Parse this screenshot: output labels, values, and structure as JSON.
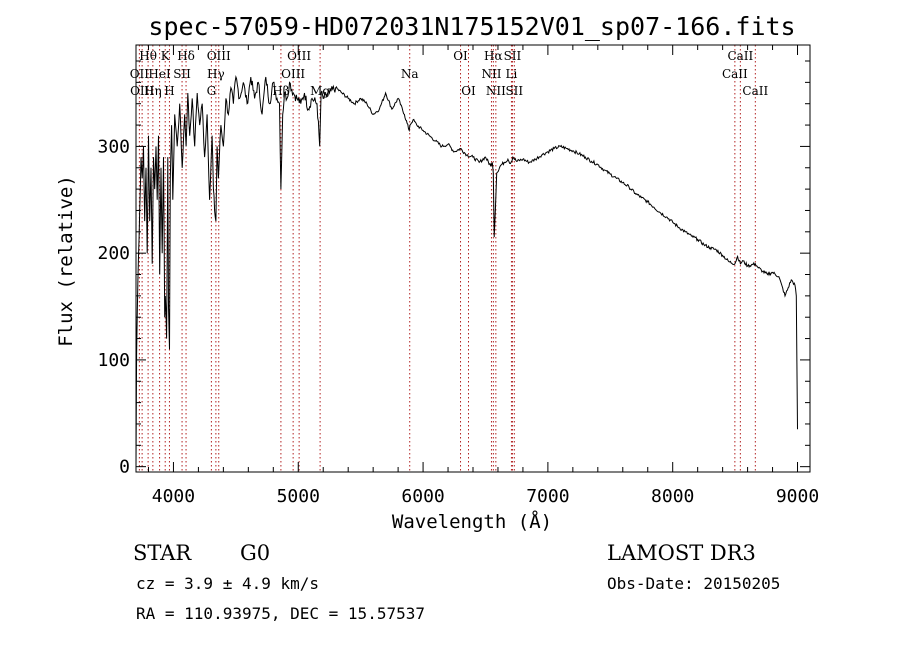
{
  "chart_data": {
    "type": "line",
    "title": "spec-57059-HD072031N175152V01_sp07-166.fits",
    "xlabel": "Wavelength (Å)",
    "ylabel": "Flux (relative)",
    "xlim": [
      3700,
      9100
    ],
    "ylim": [
      -5,
      395
    ],
    "xticks": [
      4000,
      5000,
      6000,
      7000,
      8000,
      9000
    ],
    "yticks": [
      0,
      100,
      200,
      300
    ],
    "series": [
      {
        "name": "flux",
        "x": [
          3700,
          3705,
          3715,
          3730,
          3740,
          3750,
          3760,
          3770,
          3780,
          3790,
          3800,
          3810,
          3820,
          3830,
          3840,
          3850,
          3860,
          3870,
          3880,
          3890,
          3900,
          3910,
          3920,
          3930,
          3935,
          3945,
          3955,
          3960,
          3968,
          3975,
          3985,
          3995,
          4010,
          4030,
          4050,
          4070,
          4090,
          4101,
          4115,
          4130,
          4150,
          4170,
          4190,
          4210,
          4230,
          4250,
          4270,
          4290,
          4310,
          4320,
          4330,
          4340,
          4350,
          4360,
          4380,
          4400,
          4420,
          4440,
          4460,
          4480,
          4500,
          4530,
          4560,
          4590,
          4620,
          4650,
          4680,
          4710,
          4740,
          4770,
          4800,
          4830,
          4850,
          4861,
          4875,
          4890,
          4910,
          4930,
          4960,
          4990,
          5020,
          5050,
          5080,
          5110,
          5150,
          5172,
          5183,
          5200,
          5250,
          5300,
          5350,
          5400,
          5450,
          5500,
          5550,
          5600,
          5650,
          5700,
          5750,
          5800,
          5850,
          5889,
          5895,
          5920,
          5950,
          6000,
          6050,
          6100,
          6150,
          6200,
          6250,
          6300,
          6350,
          6400,
          6450,
          6500,
          6540,
          6555,
          6563,
          6570,
          6590,
          6620,
          6650,
          6680,
          6700,
          6720,
          6750,
          6800,
          6850,
          6900,
          6950,
          7000,
          7050,
          7100,
          7150,
          7200,
          7250,
          7300,
          7350,
          7400,
          7450,
          7500,
          7550,
          7600,
          7650,
          7700,
          7750,
          7800,
          7850,
          7900,
          7950,
          8000,
          8050,
          8100,
          8150,
          8200,
          8250,
          8300,
          8350,
          8400,
          8450,
          8498,
          8520,
          8542,
          8560,
          8600,
          8662,
          8680,
          8720,
          8760,
          8800,
          8850,
          8900,
          8950,
          8980,
          8990,
          9000
        ],
        "y": [
          0,
          105,
          175,
          240,
          290,
          270,
          300,
          230,
          280,
          200,
          310,
          230,
          280,
          190,
          290,
          260,
          300,
          250,
          310,
          180,
          280,
          200,
          290,
          140,
          160,
          120,
          290,
          150,
          110,
          270,
          320,
          250,
          330,
          300,
          340,
          280,
          330,
          300,
          350,
          310,
          345,
          300,
          350,
          320,
          340,
          290,
          330,
          250,
          310,
          260,
          240,
          230,
          300,
          270,
          320,
          300,
          345,
          330,
          355,
          340,
          365,
          345,
          360,
          340,
          365,
          345,
          360,
          330,
          365,
          340,
          360,
          345,
          340,
          260,
          330,
          350,
          345,
          360,
          350,
          345,
          340,
          350,
          335,
          345,
          340,
          300,
          350,
          345,
          350,
          355,
          350,
          345,
          340,
          345,
          340,
          330,
          335,
          350,
          335,
          345,
          330,
          315,
          320,
          325,
          320,
          315,
          310,
          305,
          300,
          302,
          295,
          298,
          292,
          290,
          285,
          290,
          282,
          285,
          275,
          215,
          275,
          282,
          285,
          288,
          284,
          290,
          286,
          288,
          285,
          288,
          292,
          295,
          298,
          300,
          298,
          296,
          293,
          290,
          286,
          283,
          278,
          274,
          270,
          266,
          262,
          256,
          252,
          248,
          243,
          238,
          234,
          229,
          224,
          220,
          216,
          213,
          208,
          205,
          203,
          198,
          192,
          190,
          197,
          190,
          193,
          188,
          190,
          187,
          183,
          180,
          182,
          178,
          160,
          175,
          170,
          160,
          35
        ]
      }
    ],
    "lines": [
      {
        "name": "Hθ",
        "wl": 3797,
        "row": 0
      },
      {
        "name": "OII",
        "wl": 3727,
        "row": 1
      },
      {
        "name": "OIII",
        "wl": 3749,
        "row": 2
      },
      {
        "name": "Hη",
        "wl": 3835,
        "row": 2
      },
      {
        "name": "HeI",
        "wl": 3889,
        "row": 1
      },
      {
        "name": "K",
        "wl": 3934,
        "row": 0
      },
      {
        "name": "SII",
        "wl": 4069,
        "row": 1
      },
      {
        "name": "H",
        "wl": 3968,
        "row": 2
      },
      {
        "name": "Hδ",
        "wl": 4101,
        "row": 0
      },
      {
        "name": "OIII",
        "wl": 4363,
        "row": 0
      },
      {
        "name": "Hγ",
        "wl": 4340,
        "row": 1
      },
      {
        "name": "G",
        "wl": 4304,
        "row": 2
      },
      {
        "name": "OIII",
        "wl": 5007,
        "row": 0
      },
      {
        "name": "OIII",
        "wl": 4959,
        "row": 1
      },
      {
        "name": "Hβ",
        "wl": 4861,
        "row": 2
      },
      {
        "name": "Mg",
        "wl": 5175,
        "row": 2
      },
      {
        "name": "Na",
        "wl": 5893,
        "row": 1
      },
      {
        "name": "OI",
        "wl": 6300,
        "row": 0
      },
      {
        "name": "OI",
        "wl": 6364,
        "row": 2
      },
      {
        "name": "Hα",
        "wl": 6563,
        "row": 0
      },
      {
        "name": "SII",
        "wl": 6716,
        "row": 0
      },
      {
        "name": "NII",
        "wl": 6548,
        "row": 1
      },
      {
        "name": "Li",
        "wl": 6708,
        "row": 1
      },
      {
        "name": "NII",
        "wl": 6583,
        "row": 2
      },
      {
        "name": "SII",
        "wl": 6731,
        "row": 2
      },
      {
        "name": "CaII",
        "wl": 8542,
        "row": 0
      },
      {
        "name": "CaII",
        "wl": 8498,
        "row": 1
      },
      {
        "name": "CaII",
        "wl": 8662,
        "row": 2
      }
    ]
  },
  "info": {
    "object_type": "STAR",
    "subclass": "G0",
    "survey": "LAMOST DR3",
    "cz": "cz = 3.9 ± 4.9 km/s",
    "obs_date": "Obs-Date: 20150205",
    "coords": "RA = 110.93975, DEC =  15.57537"
  },
  "colors": {
    "spectrum": "#000000",
    "line_marker": "#b22222",
    "axes": "#000000"
  }
}
